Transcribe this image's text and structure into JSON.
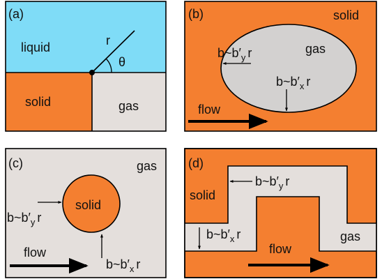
{
  "panels": [
    {
      "tag": "(a)",
      "labels": {
        "liquid": "liquid",
        "r": "r",
        "theta": "θ",
        "solid": "solid",
        "gas": "gas"
      }
    },
    {
      "tag": "(b)",
      "labels": {
        "solid": "solid",
        "gas": "gas",
        "flow": "flow"
      },
      "by": {
        "main": "b~b′",
        "sub": "y",
        "tail": "r"
      },
      "bx": {
        "main": "b~b′",
        "sub": "x",
        "tail": "r"
      }
    },
    {
      "tag": "(c)",
      "labels": {
        "gas": "gas",
        "solid": "solid",
        "flow": "flow"
      },
      "by": {
        "main": "b~b′",
        "sub": "y",
        "tail": "r"
      },
      "bx": {
        "main": "b~b′",
        "sub": "x",
        "tail": "r"
      }
    },
    {
      "tag": "(d)",
      "labels": {
        "solid": "solid",
        "gas": "gas",
        "flow": "flow"
      },
      "by": {
        "main": "b~b′",
        "sub": "y",
        "tail": "r"
      },
      "bx": {
        "main": "b~b′",
        "sub": "x",
        "tail": "r"
      }
    }
  ]
}
